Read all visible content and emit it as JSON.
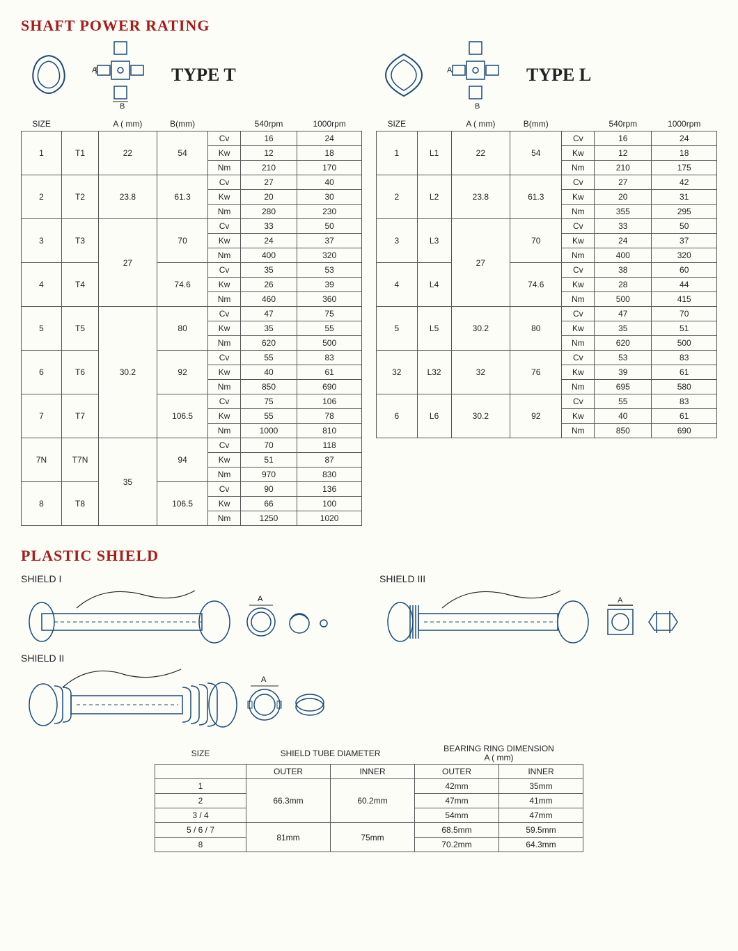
{
  "titles": {
    "shaft_power": "SHAFT POWER RATING",
    "plastic_shield": "PLASTIC SHIELD"
  },
  "type_t": {
    "label": "TYPE T",
    "headers": {
      "size": "SIZE",
      "a": "A ( mm)",
      "b": "B(mm)",
      "r540": "540rpm",
      "r1000": "1000rpm"
    },
    "units": [
      "Cv",
      "Kw",
      "Nm"
    ],
    "rows": [
      {
        "size": "1",
        "code": "T1",
        "a": "22",
        "b": "54",
        "cv": [
          "16",
          "24"
        ],
        "kw": [
          "12",
          "18"
        ],
        "nm": [
          "210",
          "170"
        ]
      },
      {
        "size": "2",
        "code": "T2",
        "a": "23.8",
        "b": "61.3",
        "cv": [
          "27",
          "40"
        ],
        "kw": [
          "20",
          "30"
        ],
        "nm": [
          "280",
          "230"
        ]
      },
      {
        "size": "3",
        "code": "T3",
        "a": "27",
        "b": "70",
        "cv": [
          "33",
          "50"
        ],
        "kw": [
          "24",
          "37"
        ],
        "nm": [
          "400",
          "320"
        ],
        "a_span": 2
      },
      {
        "size": "4",
        "code": "T4",
        "a": "",
        "b": "74.6",
        "cv": [
          "35",
          "53"
        ],
        "kw": [
          "26",
          "39"
        ],
        "nm": [
          "460",
          "360"
        ]
      },
      {
        "size": "5",
        "code": "T5",
        "a": "30.2",
        "b": "80",
        "cv": [
          "47",
          "75"
        ],
        "kw": [
          "35",
          "55"
        ],
        "nm": [
          "620",
          "500"
        ],
        "a_span": 3
      },
      {
        "size": "6",
        "code": "T6",
        "a": "",
        "b": "92",
        "cv": [
          "55",
          "83"
        ],
        "kw": [
          "40",
          "61"
        ],
        "nm": [
          "850",
          "690"
        ]
      },
      {
        "size": "7",
        "code": "T7",
        "a": "",
        "b": "106.5",
        "cv": [
          "75",
          "106"
        ],
        "kw": [
          "55",
          "78"
        ],
        "nm": [
          "1000",
          "810"
        ]
      },
      {
        "size": "7N",
        "code": "T7N",
        "a": "35",
        "b": "94",
        "cv": [
          "70",
          "118"
        ],
        "kw": [
          "51",
          "87"
        ],
        "nm": [
          "970",
          "830"
        ],
        "a_span": 2
      },
      {
        "size": "8",
        "code": "T8",
        "a": "",
        "b": "106.5",
        "cv": [
          "90",
          "136"
        ],
        "kw": [
          "66",
          "100"
        ],
        "nm": [
          "1250",
          "1020"
        ]
      }
    ]
  },
  "type_l": {
    "label": "TYPE L",
    "headers": {
      "size": "SIZE",
      "a": "A ( mm)",
      "b": "B(mm)",
      "r540": "540rpm",
      "r1000": "1000rpm"
    },
    "units": [
      "Cv",
      "Kw",
      "Nm"
    ],
    "rows": [
      {
        "size": "1",
        "code": "L1",
        "a": "22",
        "b": "54",
        "cv": [
          "16",
          "24"
        ],
        "kw": [
          "12",
          "18"
        ],
        "nm": [
          "210",
          "175"
        ]
      },
      {
        "size": "2",
        "code": "L2",
        "a": "23.8",
        "b": "61.3",
        "cv": [
          "27",
          "42"
        ],
        "kw": [
          "20",
          "31"
        ],
        "nm": [
          "355",
          "295"
        ]
      },
      {
        "size": "3",
        "code": "L3",
        "a": "27",
        "b": "70",
        "cv": [
          "33",
          "50"
        ],
        "kw": [
          "24",
          "37"
        ],
        "nm": [
          "400",
          "320"
        ],
        "a_span": 2
      },
      {
        "size": "4",
        "code": "L4",
        "a": "",
        "b": "74.6",
        "cv": [
          "38",
          "60"
        ],
        "kw": [
          "28",
          "44"
        ],
        "nm": [
          "500",
          "415"
        ]
      },
      {
        "size": "5",
        "code": "L5",
        "a": "30.2",
        "b": "80",
        "cv": [
          "47",
          "70"
        ],
        "kw": [
          "35",
          "51"
        ],
        "nm": [
          "620",
          "500"
        ]
      },
      {
        "size": "32",
        "code": "L32",
        "a": "32",
        "b": "76",
        "cv": [
          "53",
          "83"
        ],
        "kw": [
          "39",
          "61"
        ],
        "nm": [
          "695",
          "580"
        ]
      },
      {
        "size": "6",
        "code": "L6",
        "a": "30.2",
        "b": "92",
        "cv": [
          "55",
          "83"
        ],
        "kw": [
          "40",
          "61"
        ],
        "nm": [
          "850",
          "690"
        ]
      }
    ]
  },
  "shields": {
    "s1": "SHIELD I",
    "s2": "SHIELD II",
    "s3": "SHIELD III"
  },
  "shield_table": {
    "headers": {
      "size": "SIZE",
      "tube": "SHIELD TUBE DIAMETER",
      "bearing": "BEARING RING DIMENSION",
      "bearing_sub": "A ( mm)",
      "outer": "OUTER",
      "inner": "INNER"
    },
    "rows": [
      {
        "size": "1",
        "tube_outer": "66.3mm",
        "tube_inner": "60.2mm",
        "b_outer": "42mm",
        "b_inner": "35mm",
        "tube_span": 3
      },
      {
        "size": "2",
        "b_outer": "47mm",
        "b_inner": "41mm"
      },
      {
        "size": "3 / 4",
        "b_outer": "54mm",
        "b_inner": "47mm"
      },
      {
        "size": "5 / 6 / 7",
        "tube_outer": "81mm",
        "tube_inner": "75mm",
        "b_outer": "68.5mm",
        "b_inner": "59.5mm",
        "tube_span": 2
      },
      {
        "size": "8",
        "b_outer": "70.2mm",
        "b_inner": "64.3mm"
      }
    ]
  },
  "colors": {
    "title": "#a81b1b",
    "line": "#1a4a7a",
    "border": "#555555",
    "bg": "#fdfdf8"
  }
}
